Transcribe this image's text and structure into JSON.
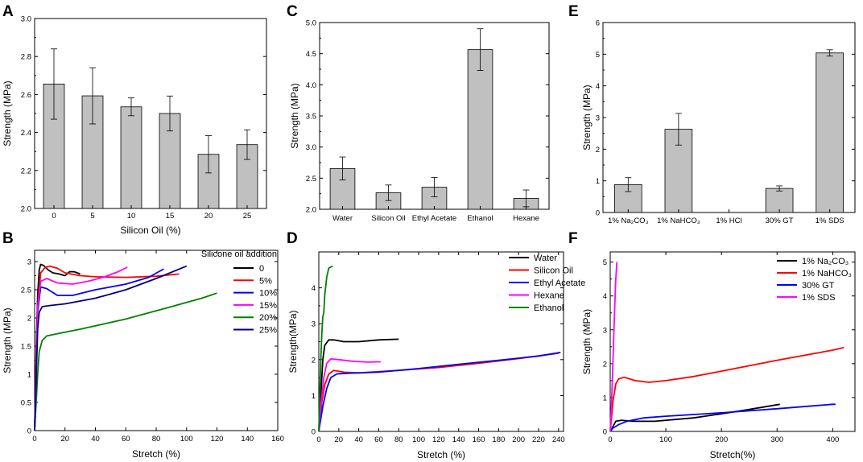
{
  "chart_data": [
    {
      "panel": "A",
      "type": "bar",
      "categories": [
        "0",
        "5",
        "10",
        "15",
        "20",
        "25"
      ],
      "values": [
        2.655,
        2.593,
        2.535,
        2.5,
        2.285,
        2.336
      ],
      "errors": [
        0.185,
        0.148,
        0.047,
        0.092,
        0.098,
        0.078
      ],
      "xlabel": "Silicon Oil (%)",
      "ylabel": "Strength (MPa)",
      "ylim": [
        2.0,
        3.0
      ],
      "yticks": [
        "2.0",
        "2.2",
        "2.4",
        "2.6",
        "2.8",
        "3.0"
      ]
    },
    {
      "panel": "C",
      "type": "bar",
      "categories": [
        "Water",
        "Silicon Oil",
        "Ethyl Acetate",
        "Ethanol",
        "Hexane"
      ],
      "values": [
        2.655,
        2.265,
        2.355,
        4.565,
        2.175
      ],
      "errors": [
        0.185,
        0.125,
        0.155,
        0.335,
        0.135
      ],
      "xlabel": "",
      "ylabel": "Strength (MPa)",
      "ylim": [
        2.0,
        5.0
      ],
      "yticks": [
        "2.0",
        "2.5",
        "3.0",
        "3.5",
        "4.0",
        "4.5",
        "5.0"
      ]
    },
    {
      "panel": "E",
      "type": "bar",
      "categories": [
        "1% Na₂CO₃",
        "1% NaHCO₃",
        "1% HCl",
        "30% GT",
        "1% SDS"
      ],
      "values": [
        0.88,
        2.63,
        0,
        0.76,
        5.04
      ],
      "errors": [
        0.22,
        0.5,
        0,
        0.08,
        0.1
      ],
      "xlabel": "",
      "ylabel": "Strength (MPa)",
      "ylim": [
        0,
        6
      ],
      "yticks": [
        "0",
        "1",
        "2",
        "3",
        "4",
        "5",
        "6"
      ]
    },
    {
      "panel": "B",
      "type": "line",
      "xlabel": "Stretch (%)",
      "ylabel": "Strength (MPa)",
      "xlim": [
        0,
        160
      ],
      "ylim": [
        0,
        3.2
      ],
      "xticks": [
        "0",
        "20",
        "40",
        "60",
        "80",
        "100",
        "120",
        "140",
        "160"
      ],
      "yticks": [
        "0",
        "0.5",
        "1",
        "1.5",
        "2",
        "2.5",
        "3"
      ],
      "legend_title": "Silicone oil addition",
      "series": [
        {
          "name": "0",
          "color": "#000000",
          "points": [
            [
              0,
              0
            ],
            [
              1,
              1.4
            ],
            [
              2,
              2.4
            ],
            [
              3,
              2.85
            ],
            [
              4,
              2.95
            ],
            [
              6,
              2.93
            ],
            [
              9,
              2.85
            ],
            [
              12,
              2.8
            ],
            [
              16,
              2.78
            ],
            [
              20,
              2.75
            ],
            [
              23,
              2.82
            ],
            [
              26,
              2.82
            ],
            [
              30,
              2.78
            ]
          ]
        },
        {
          "name": "5%",
          "color": "#ff0000",
          "points": [
            [
              0,
              0
            ],
            [
              1,
              1.2
            ],
            [
              2,
              2.2
            ],
            [
              4,
              2.8
            ],
            [
              7,
              2.9
            ],
            [
              10,
              2.92
            ],
            [
              15,
              2.88
            ],
            [
              20,
              2.8
            ],
            [
              30,
              2.75
            ],
            [
              40,
              2.73
            ],
            [
              60,
              2.72
            ],
            [
              80,
              2.74
            ],
            [
              95,
              2.78
            ]
          ]
        },
        {
          "name": "10%",
          "color": "#0000ff",
          "points": [
            [
              0,
              0
            ],
            [
              1,
              1.0
            ],
            [
              2,
              2.1
            ],
            [
              4,
              2.55
            ],
            [
              8,
              2.52
            ],
            [
              15,
              2.4
            ],
            [
              25,
              2.4
            ],
            [
              40,
              2.5
            ],
            [
              60,
              2.6
            ],
            [
              75,
              2.72
            ],
            [
              85,
              2.87
            ]
          ]
        },
        {
          "name": "15%",
          "color": "#ff00ff",
          "points": [
            [
              0,
              0
            ],
            [
              1,
              1.1
            ],
            [
              2,
              2.2
            ],
            [
              4,
              2.65
            ],
            [
              8,
              2.7
            ],
            [
              15,
              2.62
            ],
            [
              25,
              2.6
            ],
            [
              35,
              2.65
            ],
            [
              45,
              2.72
            ],
            [
              55,
              2.82
            ],
            [
              61,
              2.9
            ]
          ]
        },
        {
          "name": "20%",
          "color": "#008000",
          "points": [
            [
              0,
              0
            ],
            [
              1,
              0.5
            ],
            [
              2,
              1.0
            ],
            [
              3,
              1.4
            ],
            [
              5,
              1.6
            ],
            [
              8,
              1.68
            ],
            [
              15,
              1.72
            ],
            [
              30,
              1.8
            ],
            [
              60,
              1.98
            ],
            [
              90,
              2.2
            ],
            [
              110,
              2.35
            ],
            [
              120,
              2.44
            ]
          ]
        },
        {
          "name": "25%",
          "color": "#000080",
          "points": [
            [
              0,
              0
            ],
            [
              1,
              0.9
            ],
            [
              2,
              1.8
            ],
            [
              3,
              2.1
            ],
            [
              5,
              2.2
            ],
            [
              10,
              2.22
            ],
            [
              20,
              2.25
            ],
            [
              40,
              2.35
            ],
            [
              60,
              2.5
            ],
            [
              80,
              2.7
            ],
            [
              100,
              2.92
            ]
          ]
        }
      ]
    },
    {
      "panel": "D",
      "type": "line",
      "xlabel": "Stretch (%)",
      "ylabel": "Strength(MPa)",
      "xlim": [
        0,
        245
      ],
      "ylim": [
        0,
        5
      ],
      "xticks": [
        "0",
        "20",
        "40",
        "60",
        "80",
        "100",
        "120",
        "140",
        "160",
        "180",
        "200",
        "220",
        "240"
      ],
      "yticks": [
        "0",
        "1",
        "2",
        "3",
        "4"
      ],
      "series": [
        {
          "name": "Water",
          "color": "#000000",
          "points": [
            [
              0,
              0
            ],
            [
              2,
              1.0
            ],
            [
              4,
              2.0
            ],
            [
              6,
              2.4
            ],
            [
              10,
              2.55
            ],
            [
              15,
              2.55
            ],
            [
              25,
              2.5
            ],
            [
              40,
              2.5
            ],
            [
              60,
              2.55
            ],
            [
              80,
              2.57
            ]
          ]
        },
        {
          "name": "Silicon Oil",
          "color": "#ff0000",
          "points": [
            [
              0,
              0
            ],
            [
              3,
              0.8
            ],
            [
              6,
              1.3
            ],
            [
              10,
              1.6
            ],
            [
              15,
              1.7
            ],
            [
              25,
              1.65
            ],
            [
              40,
              1.63
            ],
            [
              80,
              1.7
            ],
            [
              120,
              1.78
            ],
            [
              160,
              1.9
            ],
            [
              200,
              2.03
            ],
            [
              240,
              2.18
            ]
          ]
        },
        {
          "name": "Ethyl Acetate",
          "color": "#0000ff",
          "points": [
            [
              0,
              0
            ],
            [
              4,
              0.7
            ],
            [
              8,
              1.2
            ],
            [
              12,
              1.5
            ],
            [
              18,
              1.6
            ],
            [
              30,
              1.62
            ],
            [
              60,
              1.65
            ],
            [
              100,
              1.75
            ],
            [
              140,
              1.87
            ],
            [
              180,
              1.98
            ],
            [
              220,
              2.1
            ],
            [
              242,
              2.2
            ]
          ]
        },
        {
          "name": "Hexane",
          "color": "#ff00ff",
          "points": [
            [
              0,
              0
            ],
            [
              2,
              0.7
            ],
            [
              5,
              1.5
            ],
            [
              8,
              1.9
            ],
            [
              12,
              2.02
            ],
            [
              20,
              2.0
            ],
            [
              35,
              1.95
            ],
            [
              50,
              1.93
            ],
            [
              62,
              1.94
            ]
          ]
        },
        {
          "name": "Ethanol",
          "color": "#008000",
          "points": [
            [
              0,
              0
            ],
            [
              1,
              1.0
            ],
            [
              2,
              2.0
            ],
            [
              3,
              2.7
            ],
            [
              4,
              3.2
            ],
            [
              5,
              3.3
            ],
            [
              6,
              3.8
            ],
            [
              8,
              4.3
            ],
            [
              10,
              4.55
            ],
            [
              12,
              4.58
            ],
            [
              14,
              4.6
            ]
          ]
        }
      ]
    },
    {
      "panel": "F",
      "type": "line",
      "xlabel": "Stretch(%)",
      "ylabel": "Strength (MPa)",
      "xlim": [
        0,
        440
      ],
      "ylim": [
        0,
        5.3
      ],
      "xticks": [
        "0",
        "100",
        "200",
        "300",
        "400"
      ],
      "yticks": [
        "0",
        "1",
        "2",
        "3",
        "4",
        "5"
      ],
      "series": [
        {
          "name": "1% Na₂CO₃",
          "color": "#000000",
          "points": [
            [
              0,
              0
            ],
            [
              5,
              0.15
            ],
            [
              10,
              0.3
            ],
            [
              20,
              0.33
            ],
            [
              40,
              0.3
            ],
            [
              80,
              0.3
            ],
            [
              150,
              0.4
            ],
            [
              200,
              0.52
            ],
            [
              250,
              0.65
            ],
            [
              305,
              0.8
            ]
          ]
        },
        {
          "name": "1% NaHCO₃",
          "color": "#ff0000",
          "points": [
            [
              0,
              0
            ],
            [
              5,
              0.9
            ],
            [
              10,
              1.4
            ],
            [
              15,
              1.55
            ],
            [
              25,
              1.6
            ],
            [
              45,
              1.5
            ],
            [
              70,
              1.45
            ],
            [
              100,
              1.5
            ],
            [
              150,
              1.62
            ],
            [
              200,
              1.78
            ],
            [
              300,
              2.1
            ],
            [
              400,
              2.4
            ],
            [
              420,
              2.48
            ]
          ]
        },
        {
          "name": "30% GT",
          "color": "#0000ff",
          "points": [
            [
              0,
              0
            ],
            [
              5,
              0.1
            ],
            [
              15,
              0.2
            ],
            [
              30,
              0.3
            ],
            [
              60,
              0.4
            ],
            [
              100,
              0.45
            ],
            [
              200,
              0.55
            ],
            [
              300,
              0.67
            ],
            [
              400,
              0.8
            ],
            [
              405,
              0.8
            ]
          ]
        },
        {
          "name": "1% SDS",
          "color": "#ff00ff",
          "points": [
            [
              0,
              0
            ],
            [
              2,
              0.7
            ],
            [
              4,
              1.6
            ],
            [
              6,
              2.6
            ],
            [
              8,
              3.6
            ],
            [
              10,
              4.5
            ],
            [
              12,
              5.0
            ]
          ]
        }
      ]
    }
  ]
}
